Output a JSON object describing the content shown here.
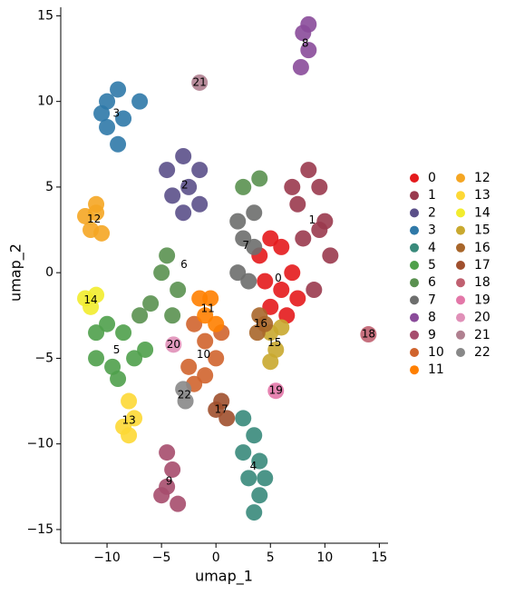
{
  "chart_data": {
    "type": "scatter",
    "xlabel": "umap_1",
    "ylabel": "umap_2",
    "xlim": [
      -14.25,
      15.8
    ],
    "ylim": [
      -15.8,
      15.5
    ],
    "xticks": [
      {
        "value": -10,
        "label": "−10"
      },
      {
        "value": -5,
        "label": "−5"
      },
      0,
      5,
      10,
      15
    ],
    "yticks": [
      {
        "value": -15,
        "label": "−15"
      },
      {
        "value": -10,
        "label": "−10"
      },
      {
        "value": -5,
        "label": "−5"
      },
      0,
      5,
      10,
      15
    ],
    "series": [
      {
        "name": "0",
        "color": "#e41a1c",
        "x": [
          4,
          5,
          6,
          7,
          6,
          5,
          7.5,
          4.5,
          6.5
        ],
        "y": [
          1,
          2,
          1.5,
          0,
          -1,
          -2,
          -1.5,
          -0.5,
          -2.5
        ]
      },
      {
        "name": "1",
        "color": "#9a3a4e",
        "x": [
          7,
          8.5,
          9.5,
          10,
          10.5,
          9,
          8,
          9.5,
          7.5
        ],
        "y": [
          5,
          6,
          5,
          3,
          1,
          -1,
          2,
          2.5,
          4
        ]
      },
      {
        "name": "2",
        "color": "#5b5089",
        "x": [
          -4.5,
          -3,
          -1.5,
          -1.5,
          -3,
          -4,
          -2.5
        ],
        "y": [
          6,
          6.8,
          6,
          4,
          3.5,
          4.5,
          5
        ]
      },
      {
        "name": "3",
        "color": "#2f79a8",
        "x": [
          -10,
          -9,
          -7,
          -8.5,
          -10,
          -9,
          -10.5
        ],
        "y": [
          10,
          10.7,
          10,
          9,
          8.5,
          7.5,
          9.3
        ]
      },
      {
        "name": "4",
        "color": "#398a7b",
        "x": [
          2.5,
          3.5,
          4,
          3,
          4,
          3.5,
          2.5,
          4.5
        ],
        "y": [
          -8.5,
          -9.5,
          -11,
          -12,
          -13,
          -14,
          -10.5,
          -12
        ]
      },
      {
        "name": "5",
        "color": "#4fa04b",
        "x": [
          -11,
          -10,
          -8.5,
          -7.5,
          -9.5,
          -11,
          -9,
          -6.5
        ],
        "y": [
          -3.5,
          -3,
          -3.5,
          -5,
          -5.5,
          -5,
          -6.2,
          -4.5
        ]
      },
      {
        "name": "6",
        "color": "#5a9150",
        "x": [
          -4.5,
          -5,
          -3.5,
          -6,
          -7,
          -4,
          2.5,
          4
        ],
        "y": [
          1,
          0,
          -1,
          -1.8,
          -2.5,
          -2.5,
          5,
          5.5
        ]
      },
      {
        "name": "7",
        "color": "#6d6e6d",
        "x": [
          2,
          2.5,
          3.5,
          2,
          3,
          3.5
        ],
        "y": [
          3,
          2,
          1.5,
          0,
          -0.5,
          3.5
        ]
      },
      {
        "name": "8",
        "color": "#8a4b9a",
        "x": [
          8,
          8.5,
          7.8,
          8.5
        ],
        "y": [
          14,
          13,
          12,
          14.5
        ]
      },
      {
        "name": "9",
        "color": "#a64d6d",
        "x": [
          -4.5,
          -4,
          -4.5,
          -3.5,
          -5
        ],
        "y": [
          -10.5,
          -11.5,
          -12.5,
          -13.5,
          -13
        ]
      },
      {
        "name": "10",
        "color": "#d0642e",
        "x": [
          -2,
          -1,
          0,
          -2.5,
          -1,
          0.5,
          -2
        ],
        "y": [
          -3,
          -4,
          -5,
          -5.5,
          -6,
          -3.5,
          -6.5
        ]
      },
      {
        "name": "11",
        "color": "#ff7f00",
        "x": [
          -1.5,
          -0.5,
          -1,
          0
        ],
        "y": [
          -1.5,
          -1.5,
          -2.5,
          -3
        ]
      },
      {
        "name": "12",
        "color": "#f5a623",
        "x": [
          -12,
          -11,
          -11.5,
          -10.5,
          -11
        ],
        "y": [
          3.3,
          3.5,
          2.5,
          2.3,
          4
        ]
      },
      {
        "name": "13",
        "color": "#fdd835",
        "x": [
          -8,
          -7.5,
          -8.5,
          -8
        ],
        "y": [
          -7.5,
          -8.5,
          -9,
          -9.5
        ]
      },
      {
        "name": "14",
        "color": "#f2ec2e",
        "x": [
          -12,
          -11.5,
          -11
        ],
        "y": [
          -1.5,
          -2,
          -1.3
        ]
      },
      {
        "name": "15",
        "color": "#c9a92f",
        "x": [
          5,
          5.5,
          5,
          6
        ],
        "y": [
          -3.5,
          -4.5,
          -5.2,
          -3.2
        ]
      },
      {
        "name": "16",
        "color": "#a8662a",
        "x": [
          4,
          4.5,
          3.8
        ],
        "y": [
          -2.5,
          -3,
          -3.5
        ]
      },
      {
        "name": "17",
        "color": "#a0502e",
        "x": [
          0.5,
          1,
          0
        ],
        "y": [
          -7.5,
          -8.5,
          -8
        ]
      },
      {
        "name": "18",
        "color": "#c06070",
        "x": [
          14
        ],
        "y": [
          -3.6
        ]
      },
      {
        "name": "19",
        "color": "#e377a8",
        "x": [
          5.5
        ],
        "y": [
          -6.9
        ]
      },
      {
        "name": "20",
        "color": "#e090b8",
        "x": [
          -3.9
        ],
        "y": [
          -4.2
        ]
      },
      {
        "name": "21",
        "color": "#b08090",
        "x": [
          -1.5
        ],
        "y": [
          11.1
        ]
      },
      {
        "name": "22",
        "color": "#888888",
        "x": [
          -3,
          -2.8
        ],
        "y": [
          -6.8,
          -7.5
        ]
      }
    ]
  }
}
